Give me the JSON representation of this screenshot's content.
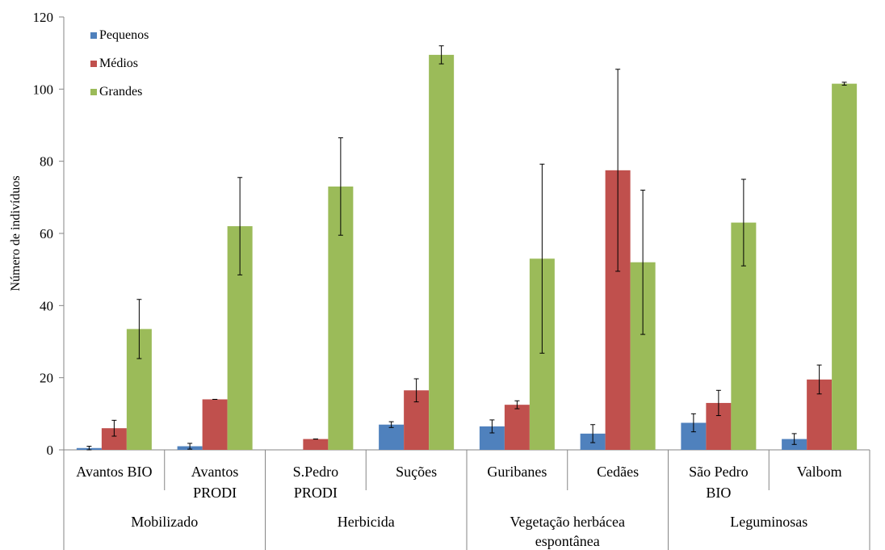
{
  "chart_data": {
    "type": "bar",
    "ylabel": "Número de indivíduos",
    "xlabel": "",
    "ylim": [
      0,
      120
    ],
    "yticks": [
      0,
      20,
      40,
      60,
      80,
      100,
      120
    ],
    "legend_position": "top-left",
    "grid": false,
    "categories": [
      [
        "Avantos BIO"
      ],
      [
        "Avantos",
        "PRODI"
      ],
      [
        "S.Pedro",
        "PRODI"
      ],
      [
        "Suções"
      ],
      [
        "Guribanes"
      ],
      [
        "Cedães"
      ],
      [
        "São Pedro",
        "BIO"
      ],
      [
        "Valbom"
      ]
    ],
    "groups": [
      {
        "label": [
          "Mobilizado"
        ],
        "categories": [
          0,
          1
        ]
      },
      {
        "label": [
          "Herbicida"
        ],
        "categories": [
          2,
          3
        ]
      },
      {
        "label": [
          "Vegetação herbácea",
          "espontânea"
        ],
        "categories": [
          4,
          5
        ]
      },
      {
        "label": [
          "Leguminosas"
        ],
        "categories": [
          6,
          7
        ]
      }
    ],
    "series": [
      {
        "name": "Pequenos",
        "color": "#4F81BD",
        "values": [
          0.5,
          1,
          0,
          7,
          6.5,
          4.5,
          7.5,
          3
        ],
        "errors": [
          0.5,
          0.8,
          0,
          0.8,
          1.8,
          2.5,
          2.5,
          1.5
        ]
      },
      {
        "name": "Médios",
        "color": "#C0504D",
        "values": [
          6,
          14,
          3,
          16.5,
          12.5,
          77.5,
          13,
          19.5
        ],
        "errors": [
          2.2,
          0,
          0,
          3.2,
          1.1,
          28,
          3.5,
          4
        ]
      },
      {
        "name": "Grandes",
        "color": "#9BBB59",
        "values": [
          33.5,
          62,
          73,
          109.5,
          53,
          52,
          63,
          101.5
        ],
        "errors": [
          8.2,
          13.5,
          13.5,
          2.5,
          26.2,
          20,
          12,
          0.4
        ]
      }
    ]
  }
}
